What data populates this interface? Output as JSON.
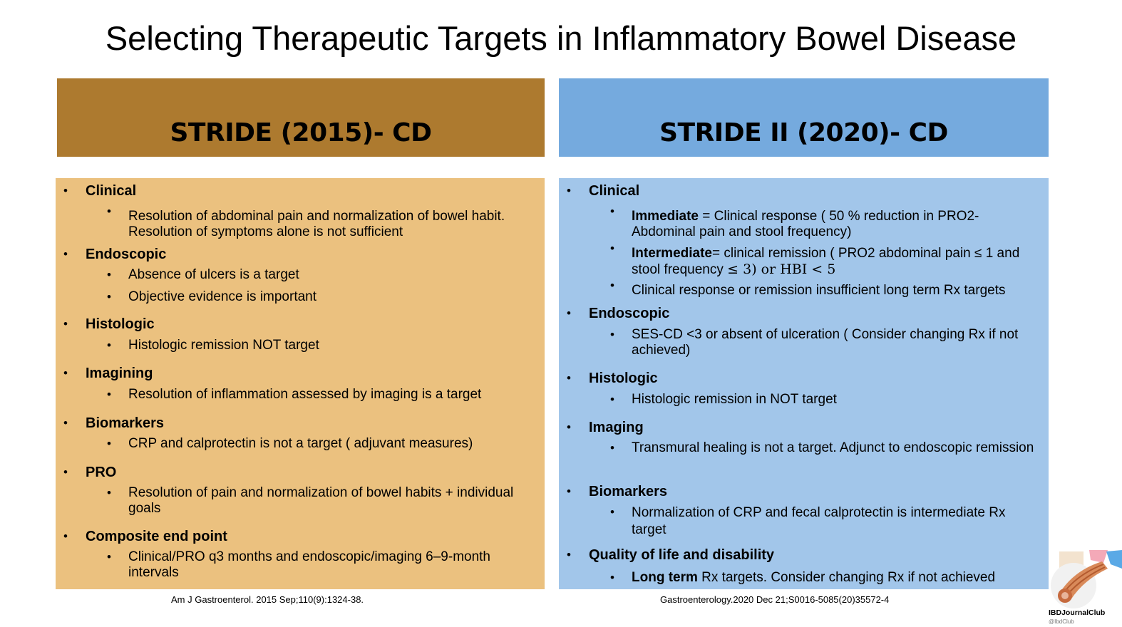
{
  "title": "Selecting Therapeutic Targets in Inflammatory Bowel Disease",
  "left": {
    "header": "STRIDE (2015)- CD",
    "reference": "Am J Gastroenterol. 2015 Sep;110(9):1324-38.",
    "sections": [
      {
        "title": "Clinical",
        "items": [
          {
            "text": "Resolution of abdominal pain and normalization of bowel habit. Resolution of symptoms alone is not sufficient"
          }
        ]
      },
      {
        "title": "Endoscopic",
        "items": [
          {
            "text": "Absence of ulcers is a target"
          },
          {
            "text": "Objective evidence is important"
          }
        ]
      },
      {
        "title": "Histologic",
        "items": [
          {
            "text": "Histologic remission NOT target"
          }
        ]
      },
      {
        "title": "Imagining",
        "items": [
          {
            "text": "Resolution of inflammation assessed by imaging is a target"
          }
        ]
      },
      {
        "title": "Biomarkers",
        "items": [
          {
            "text": "CRP and calprotectin is not a target ( adjuvant measures)"
          }
        ]
      },
      {
        "title": "PRO",
        "items": [
          {
            "text": "Resolution of pain and normalization of bowel habits + individual goals"
          }
        ]
      },
      {
        "title": "Composite end point",
        "items": [
          {
            "text": "Clinical/PRO q3 months and endoscopic/imaging 6–9-month intervals"
          }
        ]
      }
    ]
  },
  "right": {
    "header": "STRIDE II (2020)- CD",
    "reference": "Gastroenterology.2020 Dec 21;S0016-5085(20)35572-4",
    "sections": [
      {
        "title": "Clinical",
        "items": [
          {
            "bold": "Immediate",
            "text": " = Clinical response ( 50 % reduction in PRO2- Abdominal pain and stool frequency)"
          },
          {
            "bold": "Intermediate",
            "text": "= clinical remission ( PRO2 abdominal pain ≤ 1 and stool frequency ",
            "math": "≤ 3) or HBI < 5"
          },
          {
            "text": "Clinical response or remission insufficient long term Rx targets"
          }
        ]
      },
      {
        "title": "Endoscopic",
        "items": [
          {
            "text": "SES-CD <3 or absent of ulceration  ( Consider changing Rx if not achieved)"
          }
        ]
      },
      {
        "title": "Histologic",
        "items": [
          {
            "text": "Histologic remission in NOT target"
          }
        ]
      },
      {
        "title": "Imaging",
        "items": [
          {
            "text": "Transmural healing is not a target. Adjunct to endoscopic remission"
          }
        ]
      },
      {
        "title": "Biomarkers",
        "items": [
          {
            "text": "Normalization of CRP and fecal calprotectin is intermediate Rx target"
          }
        ]
      },
      {
        "title": "Quality of life and disability",
        "items": [
          {
            "bold": "Long term",
            "text": " Rx targets. Consider changing Rx if not achieved"
          }
        ]
      }
    ]
  },
  "bullet": "•",
  "logo": {
    "name": "IBDJournalClub",
    "handle": "@IbdClub"
  },
  "colors": {
    "left_header": "#ad7a2f",
    "left_panel": "#ebc17f",
    "right_header": "#75aade",
    "right_panel": "#a2c6ea"
  }
}
